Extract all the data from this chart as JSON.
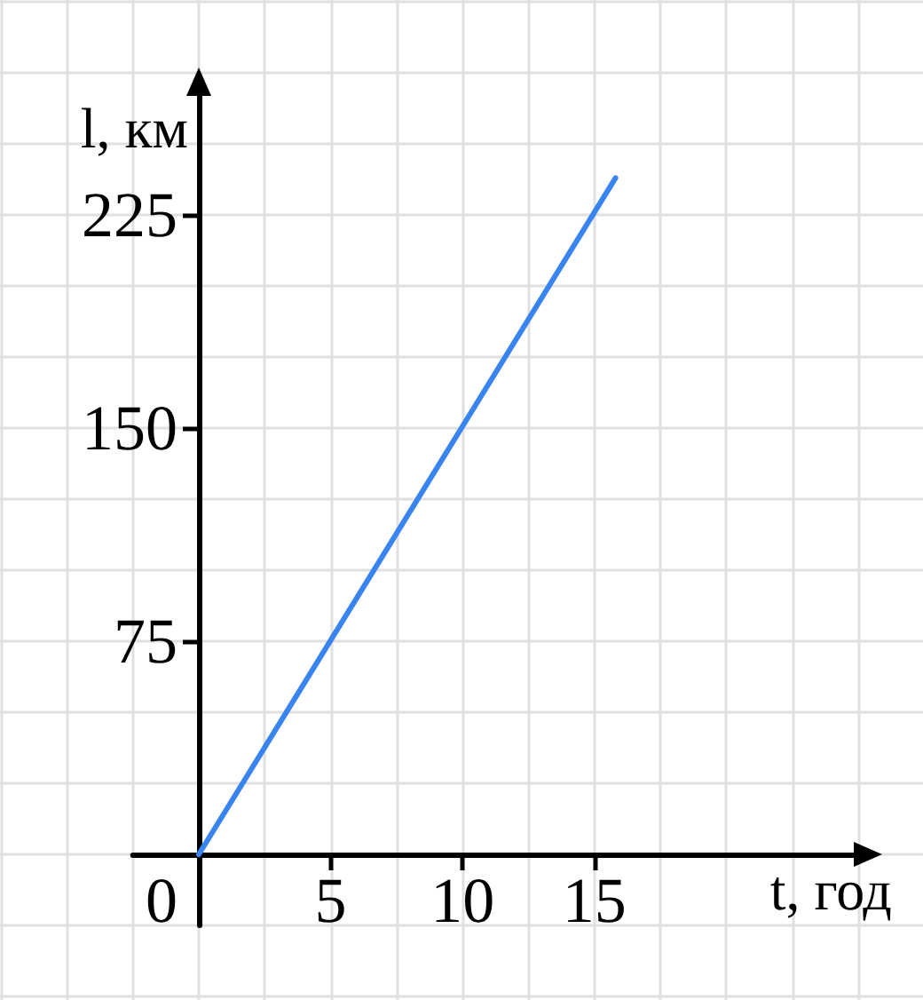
{
  "chart_data": {
    "type": "line",
    "xlabel": "t, год",
    "ylabel": "l, км",
    "x": [
      0,
      15.8
    ],
    "values": [
      0,
      238
    ],
    "color": "#3a84f0",
    "xlim": [
      -2.5,
      25.4
    ],
    "ylim": [
      -25,
      272
    ],
    "xticks": [
      0,
      5,
      10,
      15
    ],
    "yticks": [
      75,
      150,
      225
    ],
    "grid": true
  }
}
